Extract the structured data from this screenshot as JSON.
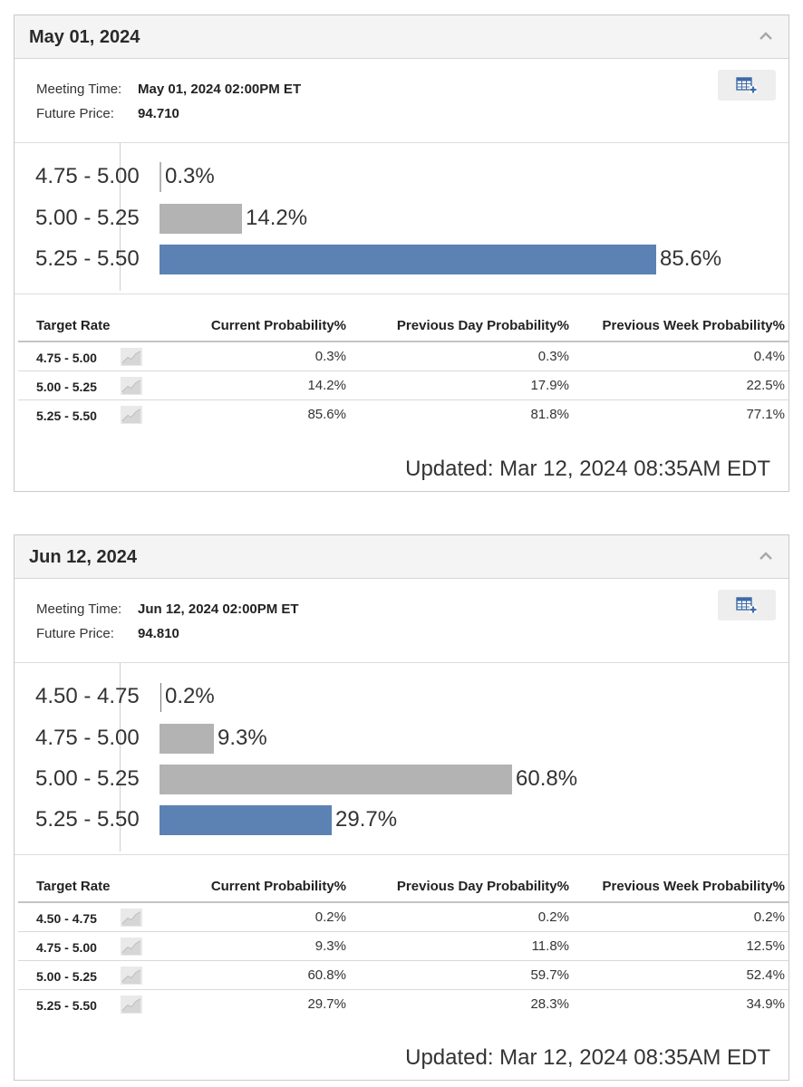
{
  "meetings": [
    {
      "date": "May 01, 2024",
      "meeting_time_label": "Meeting Time:",
      "meeting_time": "May 01, 2024 02:00PM ET",
      "future_price_label": "Future Price:",
      "future_price": "94.710",
      "bars": [
        {
          "label": "4.75 - 5.00",
          "value": 0.3,
          "value_text": "0.3%",
          "color": "#b3b3b3"
        },
        {
          "label": "5.00 - 5.25",
          "value": 14.2,
          "value_text": "14.2%",
          "color": "#b3b3b3"
        },
        {
          "label": "5.25 - 5.50",
          "value": 85.6,
          "value_text": "85.6%",
          "color": "#5b82b3"
        }
      ],
      "table": {
        "headers": [
          "Target Rate",
          "Current Probability%",
          "Previous Day Probability%",
          "Previous Week Probability%"
        ],
        "rows": [
          {
            "rate": "4.75 - 5.00",
            "current": "0.3%",
            "prev_day": "0.3%",
            "prev_week": "0.4%"
          },
          {
            "rate": "5.00 - 5.25",
            "current": "14.2%",
            "prev_day": "17.9%",
            "prev_week": "22.5%"
          },
          {
            "rate": "5.25 - 5.50",
            "current": "85.6%",
            "prev_day": "81.8%",
            "prev_week": "77.1%"
          }
        ]
      },
      "updated": "Updated: Mar 12, 2024 08:35AM EDT"
    },
    {
      "date": "Jun 12, 2024",
      "meeting_time_label": "Meeting Time:",
      "meeting_time": "Jun 12, 2024 02:00PM ET",
      "future_price_label": "Future Price:",
      "future_price": "94.810",
      "bars": [
        {
          "label": "4.50 - 4.75",
          "value": 0.2,
          "value_text": "0.2%",
          "color": "#b3b3b3"
        },
        {
          "label": "4.75 - 5.00",
          "value": 9.3,
          "value_text": "9.3%",
          "color": "#b3b3b3"
        },
        {
          "label": "5.00 - 5.25",
          "value": 60.8,
          "value_text": "60.8%",
          "color": "#b3b3b3"
        },
        {
          "label": "5.25 - 5.50",
          "value": 29.7,
          "value_text": "29.7%",
          "color": "#5b82b3"
        }
      ],
      "table": {
        "headers": [
          "Target Rate",
          "Current Probability%",
          "Previous Day Probability%",
          "Previous Week Probability%"
        ],
        "rows": [
          {
            "rate": "4.50 - 4.75",
            "current": "0.2%",
            "prev_day": "0.2%",
            "prev_week": "0.2%"
          },
          {
            "rate": "4.75 - 5.00",
            "current": "9.3%",
            "prev_day": "11.8%",
            "prev_week": "12.5%"
          },
          {
            "rate": "5.00 - 5.25",
            "current": "60.8%",
            "prev_day": "59.7%",
            "prev_week": "52.4%"
          },
          {
            "rate": "5.25 - 5.50",
            "current": "29.7%",
            "prev_day": "28.3%",
            "prev_week": "34.9%"
          }
        ]
      },
      "updated": "Updated: Mar 12, 2024 08:35AM EDT"
    }
  ],
  "icons": {
    "collapse": "chevron-up-icon",
    "export": "table-add-icon",
    "sparkline": "sparkline-chart-icon"
  },
  "colors": {
    "accent_bar": "#5b82b3",
    "neutral_bar": "#b3b3b3",
    "header_bg": "#f4f4f4"
  }
}
